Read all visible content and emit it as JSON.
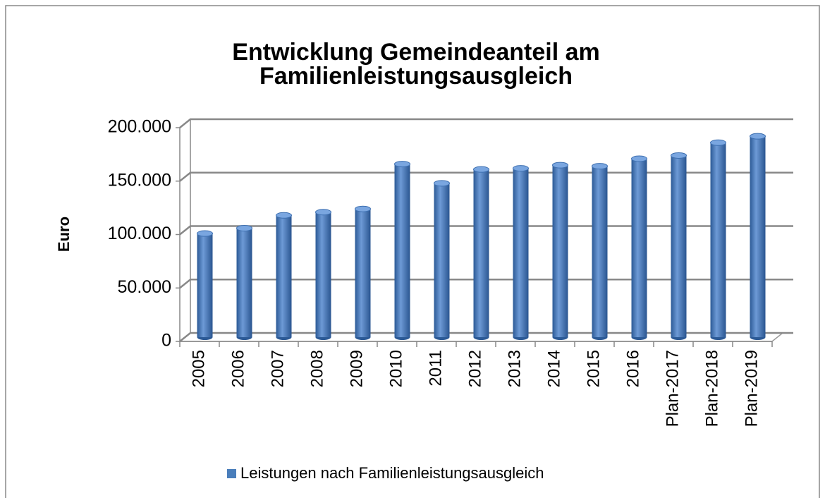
{
  "chart_data": {
    "type": "bar3d",
    "title": [
      "Entwicklung Gemeindeanteil am",
      "Familienleistungsausgleich"
    ],
    "y_label": "Euro",
    "categories": [
      "2005",
      "2006",
      "2007",
      "2008",
      "2009",
      "2010",
      "2011",
      "2012",
      "2013",
      "2014",
      "2015",
      "2016",
      "Plan-2017",
      "Plan-2018",
      "Plan-2019"
    ],
    "series": [
      {
        "name": "Leistungen nach Familienleistungsausgleich",
        "color": "#4a7ebb",
        "values": [
          97000,
          102000,
          114000,
          117000,
          120000,
          162000,
          144000,
          157000,
          158000,
          161000,
          160000,
          167000,
          170000,
          182000,
          188000
        ]
      }
    ],
    "ylim": [
      0,
      200000
    ],
    "yticks": [
      {
        "value": 0,
        "label": "0"
      },
      {
        "value": 50000,
        "label": "50.000"
      },
      {
        "value": 100000,
        "label": "100.000"
      },
      {
        "value": 150000,
        "label": "150.000"
      },
      {
        "value": 200000,
        "label": "200.000"
      }
    ],
    "grid": true,
    "legend": "bottom"
  }
}
